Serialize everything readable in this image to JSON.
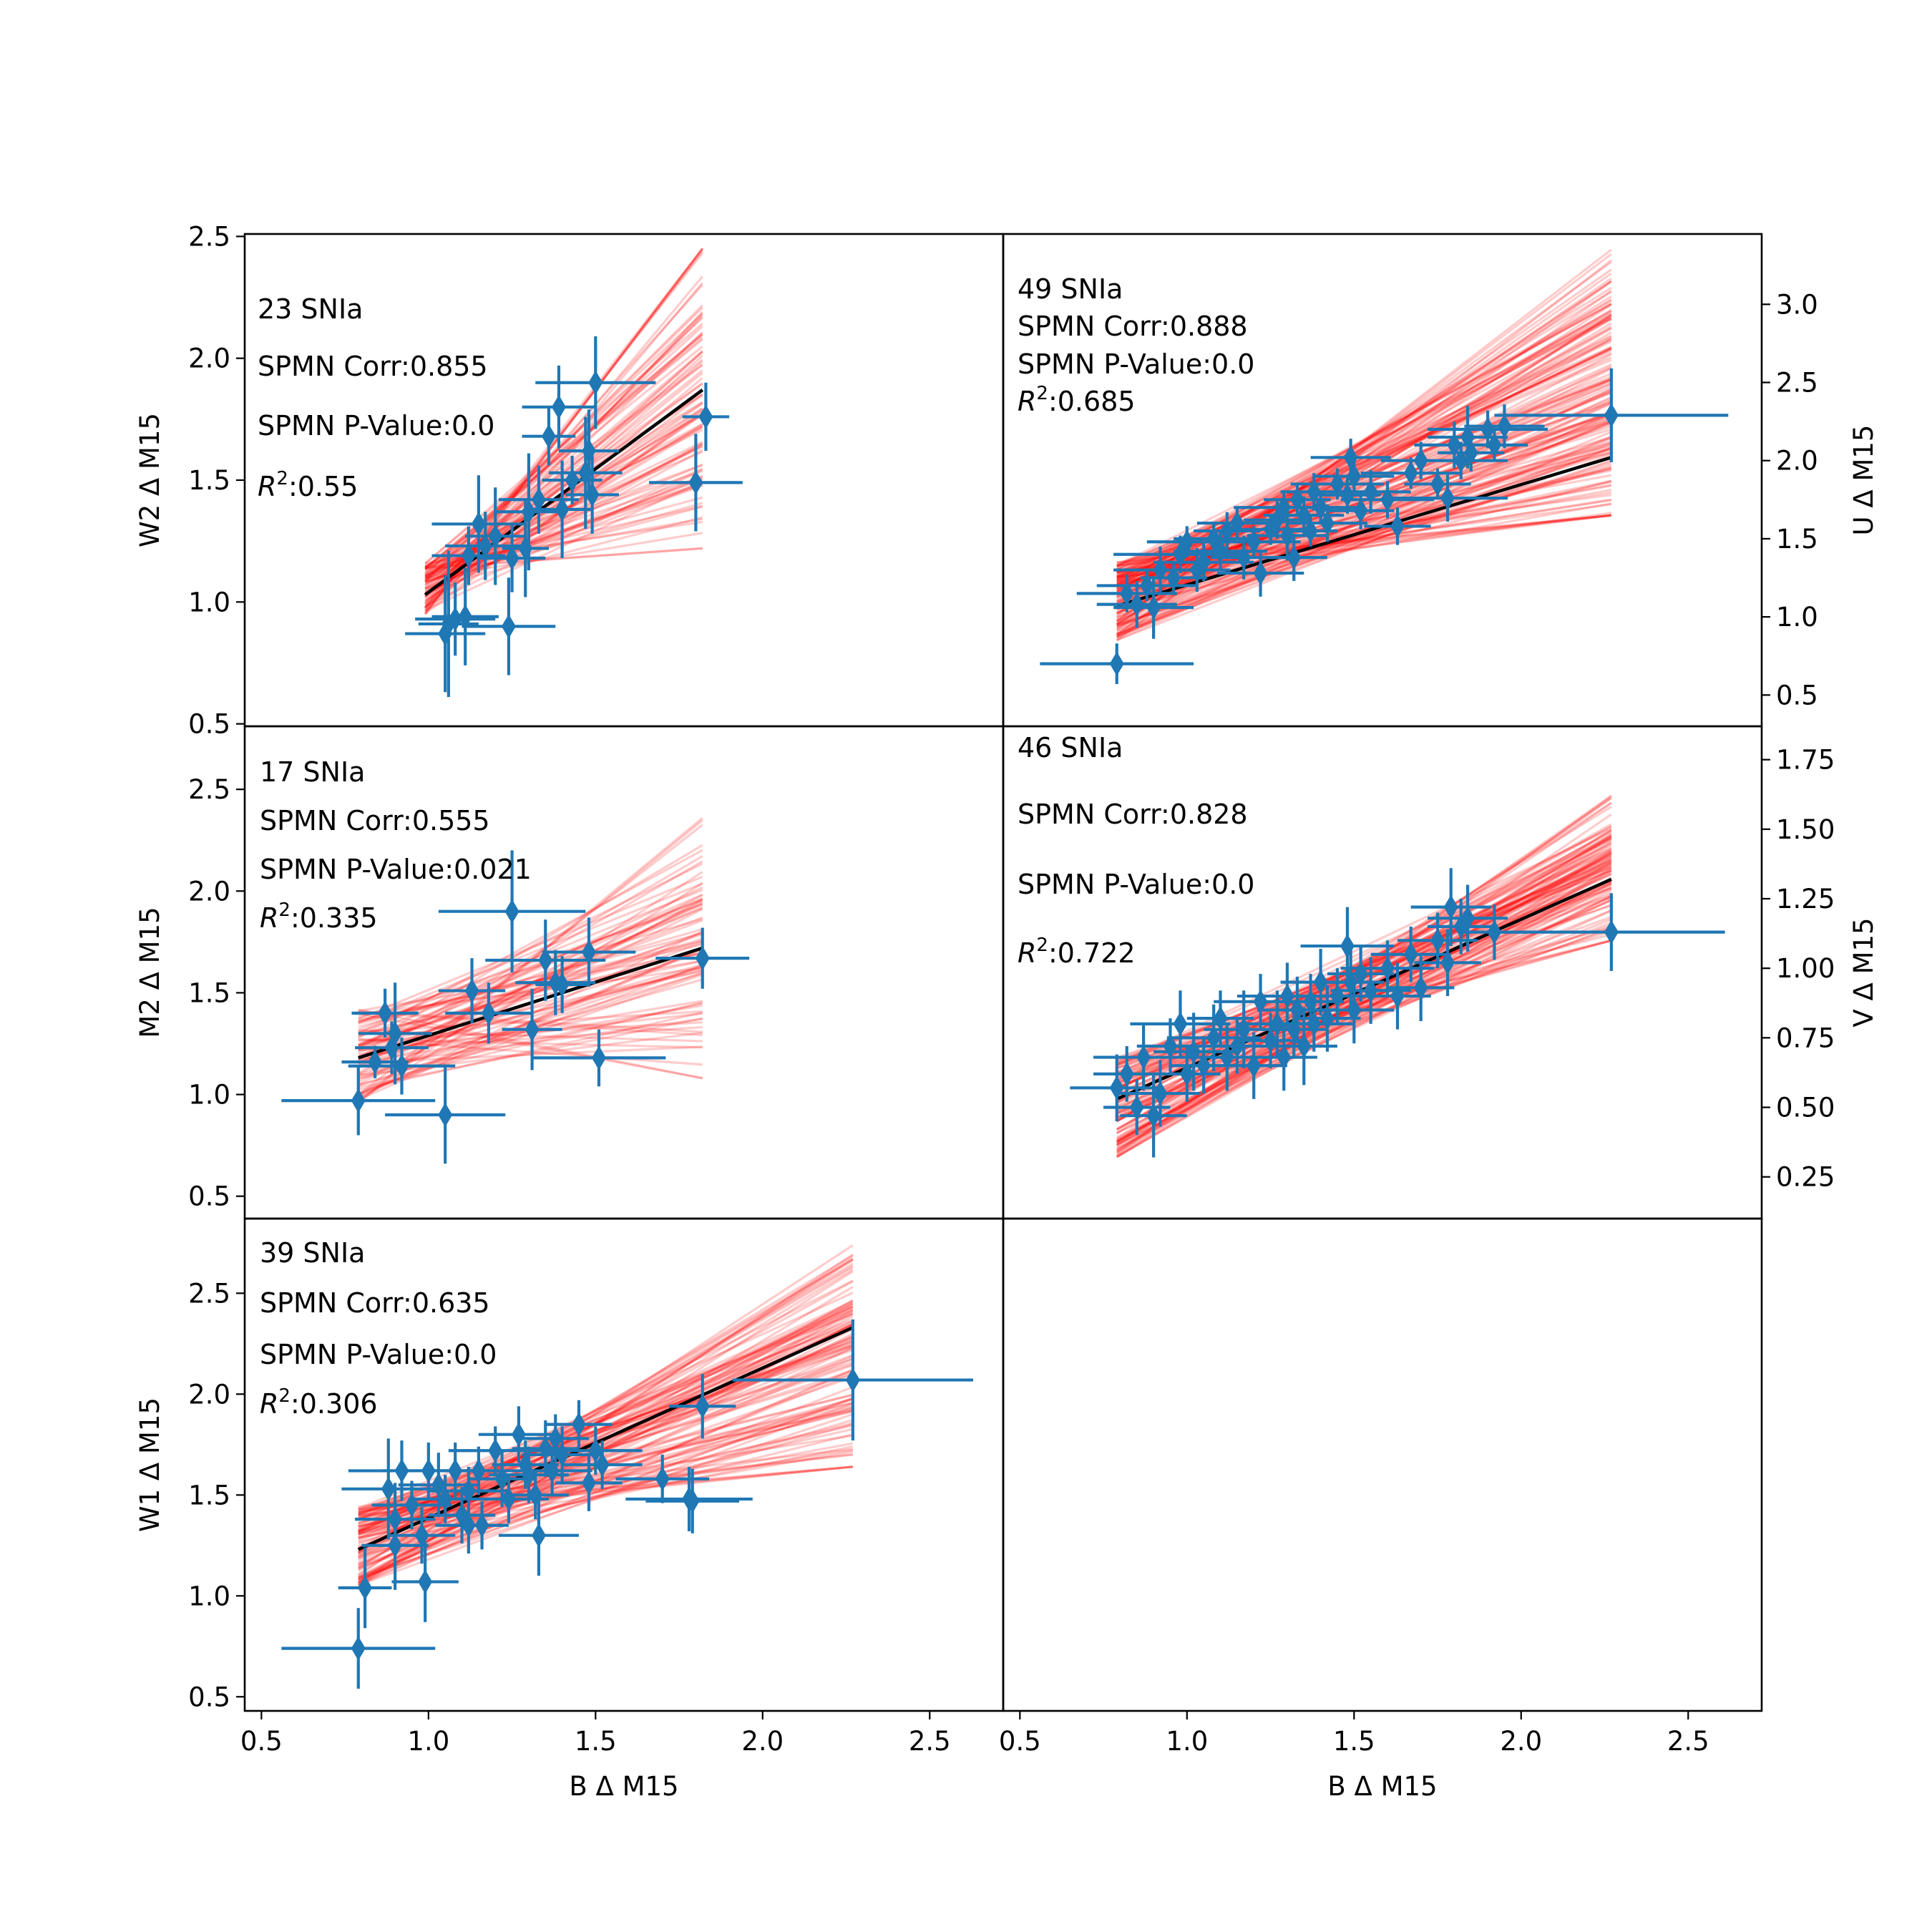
{
  "figure": {
    "colors": {
      "points": "#1f77b4",
      "samples": "#ff0000",
      "fit": "#000000",
      "axes": "#000000"
    }
  },
  "chart_data": [
    {
      "type": "scatter",
      "id": "w2",
      "annotations": [
        "23 SNIa",
        "SPMN Corr:0.855",
        "SPMN P-Value:0.0",
        ":0.55"
      ],
      "r2_label": "R",
      "r2_exp": "2",
      "xlabel": "",
      "ylabel": "W2 Δ M15",
      "ylabel_side": "left",
      "xlim": [
        0.45,
        2.72
      ],
      "ylim": [
        0.49,
        2.51
      ],
      "xticks": [],
      "yticks": [
        "0.5",
        "1.0",
        "1.5",
        "2.0",
        "2.5"
      ],
      "fit": {
        "x": [
          0.99,
          1.82
        ],
        "y": [
          1.03,
          1.87
        ]
      },
      "samples": {
        "x0": 0.99,
        "x1": 1.82,
        "y0_range": [
          0.95,
          1.16
        ],
        "y1_range": [
          1.22,
          2.45
        ],
        "n": 90
      },
      "points": [
        [
          1.05,
          0.87,
          0.12,
          0.24
        ],
        [
          1.06,
          0.91,
          0.09,
          0.3
        ],
        [
          1.08,
          0.93,
          0.12,
          0.15
        ],
        [
          1.11,
          0.94,
          0.1,
          0.2
        ],
        [
          1.24,
          0.9,
          0.14,
          0.2
        ],
        [
          1.12,
          1.19,
          0.11,
          0.12
        ],
        [
          1.15,
          1.32,
          0.14,
          0.2
        ],
        [
          1.17,
          1.23,
          0.12,
          0.14
        ],
        [
          1.2,
          1.27,
          0.09,
          0.2
        ],
        [
          1.25,
          1.18,
          0.1,
          0.14
        ],
        [
          1.29,
          1.22,
          0.07,
          0.2
        ],
        [
          1.3,
          1.37,
          0.1,
          0.24
        ],
        [
          1.33,
          1.42,
          0.12,
          0.14
        ],
        [
          1.36,
          1.68,
          0.08,
          0.12
        ],
        [
          1.39,
          1.8,
          0.11,
          0.17
        ],
        [
          1.4,
          1.38,
          0.09,
          0.2
        ],
        [
          1.43,
          1.5,
          0.09,
          0.1
        ],
        [
          1.47,
          1.53,
          0.11,
          0.23
        ],
        [
          1.48,
          1.62,
          0.09,
          0.17
        ],
        [
          1.49,
          1.44,
          0.08,
          0.16
        ],
        [
          1.5,
          1.9,
          0.18,
          0.19
        ],
        [
          1.8,
          1.49,
          0.14,
          0.2
        ],
        [
          1.83,
          1.76,
          0.07,
          0.14
        ]
      ]
    },
    {
      "type": "scatter",
      "id": "u",
      "annotations": [
        "49 SNIa",
        "SPMN Corr:0.888",
        "SPMN P-Value:0.0",
        ":0.685"
      ],
      "r2_label": "R",
      "r2_exp": "2",
      "xlabel": "",
      "ylabel": "U Δ M15",
      "ylabel_side": "right",
      "xlim": [
        0.45,
        2.72
      ],
      "ylim": [
        0.3,
        3.45
      ],
      "xticks": [],
      "yticks": [
        "0.5",
        "1.0",
        "1.5",
        "2.0",
        "2.5",
        "3.0"
      ],
      "fit": {
        "x": [
          0.79,
          2.27
        ],
        "y": [
          1.07,
          2.02
        ]
      },
      "samples": {
        "x0": 0.79,
        "x1": 2.27,
        "y0_range": [
          0.85,
          1.35
        ],
        "y1_range": [
          1.65,
          3.35
        ],
        "n": 150
      },
      "points": [
        [
          0.79,
          0.7,
          0.23,
          0.13
        ],
        [
          0.82,
          1.15,
          0.15,
          0.12
        ],
        [
          0.85,
          1.08,
          0.12,
          0.15
        ],
        [
          0.88,
          1.2,
          0.15,
          0.1
        ],
        [
          0.9,
          1.06,
          0.12,
          0.2
        ],
        [
          0.92,
          1.3,
          0.14,
          0.15
        ],
        [
          0.96,
          1.25,
          0.1,
          0.1
        ],
        [
          0.98,
          1.4,
          0.2,
          0.12
        ],
        [
          1.0,
          1.48,
          0.12,
          0.1
        ],
        [
          1.03,
          1.3,
          0.1,
          0.14
        ],
        [
          1.05,
          1.35,
          0.15,
          0.12
        ],
        [
          1.08,
          1.5,
          0.12,
          0.1
        ],
        [
          1.1,
          1.42,
          0.14,
          0.12
        ],
        [
          1.12,
          1.55,
          0.1,
          0.12
        ],
        [
          1.15,
          1.6,
          0.12,
          0.1
        ],
        [
          1.17,
          1.38,
          0.1,
          0.14
        ],
        [
          1.2,
          1.48,
          0.14,
          0.1
        ],
        [
          1.22,
          1.28,
          0.13,
          0.15
        ],
        [
          1.25,
          1.56,
          0.12,
          0.1
        ],
        [
          1.27,
          1.62,
          0.1,
          0.12
        ],
        [
          1.29,
          1.7,
          0.15,
          0.1
        ],
        [
          1.3,
          1.52,
          0.12,
          0.16
        ],
        [
          1.32,
          1.38,
          0.1,
          0.15
        ],
        [
          1.33,
          1.75,
          0.1,
          0.1
        ],
        [
          1.35,
          1.65,
          0.12,
          0.12
        ],
        [
          1.37,
          1.55,
          0.08,
          0.1
        ],
        [
          1.38,
          1.8,
          0.1,
          0.12
        ],
        [
          1.4,
          1.7,
          0.12,
          0.1
        ],
        [
          1.42,
          1.6,
          0.12,
          0.12
        ],
        [
          1.45,
          1.85,
          0.14,
          0.1
        ],
        [
          1.48,
          1.78,
          0.1,
          0.12
        ],
        [
          1.49,
          2.02,
          0.12,
          0.12
        ],
        [
          1.5,
          1.9,
          0.12,
          0.1
        ],
        [
          1.52,
          1.68,
          0.1,
          0.12
        ],
        [
          1.55,
          1.8,
          0.12,
          0.14
        ],
        [
          1.6,
          1.75,
          0.14,
          0.12
        ],
        [
          1.63,
          1.58,
          0.1,
          0.12
        ],
        [
          1.67,
          1.92,
          0.15,
          0.1
        ],
        [
          1.7,
          2.0,
          0.12,
          0.12
        ],
        [
          1.75,
          1.85,
          0.1,
          0.1
        ],
        [
          1.78,
          1.76,
          0.18,
          0.15
        ],
        [
          1.8,
          2.1,
          0.12,
          0.15
        ],
        [
          1.82,
          2.0,
          0.14,
          0.12
        ],
        [
          1.84,
          2.15,
          0.12,
          0.2
        ],
        [
          1.85,
          2.05,
          0.1,
          0.12
        ],
        [
          1.9,
          2.2,
          0.18,
          0.12
        ],
        [
          1.92,
          2.1,
          0.1,
          0.1
        ],
        [
          1.95,
          2.22,
          0.12,
          0.14
        ],
        [
          2.27,
          2.29,
          0.35,
          0.3
        ]
      ]
    },
    {
      "type": "scatter",
      "id": "m2",
      "annotations": [
        "17 SNIa",
        "SPMN Corr:0.555",
        "SPMN P-Value:0.021",
        ":0.335"
      ],
      "r2_label": "R",
      "r2_exp": "2",
      "xlabel": "",
      "ylabel": "M2 Δ M15",
      "ylabel_side": "left",
      "xlim": [
        0.45,
        2.72
      ],
      "ylim": [
        0.39,
        2.81
      ],
      "xticks": [],
      "yticks": [
        "0.5",
        "1.0",
        "1.5",
        "2.0",
        "2.5"
      ],
      "fit": {
        "x": [
          0.79,
          1.82
        ],
        "y": [
          1.18,
          1.72
        ]
      },
      "samples": {
        "x0": 0.79,
        "x1": 1.82,
        "y0_range": [
          0.95,
          1.42
        ],
        "y1_range": [
          1.08,
          2.42
        ],
        "n": 80
      },
      "points": [
        [
          0.79,
          0.97,
          0.23,
          0.17
        ],
        [
          0.84,
          1.16,
          0.1,
          0.08
        ],
        [
          0.87,
          1.4,
          0.1,
          0.12
        ],
        [
          0.89,
          1.23,
          0.11,
          0.13
        ],
        [
          0.9,
          1.3,
          0.11,
          0.25
        ],
        [
          0.92,
          1.14,
          0.16,
          0.14
        ],
        [
          1.05,
          0.9,
          0.18,
          0.24
        ],
        [
          1.13,
          1.51,
          0.1,
          0.16
        ],
        [
          1.18,
          1.4,
          0.13,
          0.15
        ],
        [
          1.25,
          1.9,
          0.22,
          0.3
        ],
        [
          1.31,
          1.32,
          0.09,
          0.2
        ],
        [
          1.35,
          1.66,
          0.18,
          0.2
        ],
        [
          1.38,
          1.55,
          0.12,
          0.16
        ],
        [
          1.4,
          1.54,
          0.08,
          0.14
        ],
        [
          1.48,
          1.7,
          0.14,
          0.17
        ],
        [
          1.51,
          1.18,
          0.2,
          0.14
        ],
        [
          1.82,
          1.67,
          0.14,
          0.15
        ]
      ]
    },
    {
      "type": "scatter",
      "id": "v",
      "annotations": [
        "46 SNIa",
        "SPMN Corr:0.828",
        "SPMN P-Value:0.0",
        ":0.722"
      ],
      "r2_label": "R",
      "r2_exp": "2",
      "xlabel": "",
      "ylabel": "V Δ M15",
      "ylabel_side": "right",
      "xlim": [
        0.45,
        2.72
      ],
      "ylim": [
        0.1,
        1.87
      ],
      "xticks": [],
      "yticks": [
        "0.25",
        "0.50",
        "0.75",
        "1.00",
        "1.25",
        "1.50",
        "1.75"
      ],
      "fit": {
        "x": [
          0.79,
          2.27
        ],
        "y": [
          0.53,
          1.32
        ]
      },
      "samples": {
        "x0": 0.79,
        "x1": 2.27,
        "y0_range": [
          0.32,
          0.68
        ],
        "y1_range": [
          1.1,
          1.62
        ],
        "n": 110
      },
      "points": [
        [
          0.79,
          0.57,
          0.14,
          0.12
        ],
        [
          0.82,
          0.62,
          0.1,
          0.1
        ],
        [
          0.85,
          0.5,
          0.1,
          0.1
        ],
        [
          0.87,
          0.68,
          0.15,
          0.12
        ],
        [
          0.9,
          0.47,
          0.1,
          0.15
        ],
        [
          0.92,
          0.55,
          0.12,
          0.12
        ],
        [
          0.95,
          0.72,
          0.1,
          0.1
        ],
        [
          0.98,
          0.8,
          0.15,
          0.12
        ],
        [
          1.0,
          0.62,
          0.1,
          0.1
        ],
        [
          1.02,
          0.7,
          0.12,
          0.14
        ],
        [
          1.05,
          0.65,
          0.1,
          0.1
        ],
        [
          1.08,
          0.75,
          0.14,
          0.12
        ],
        [
          1.1,
          0.82,
          0.1,
          0.1
        ],
        [
          1.12,
          0.68,
          0.12,
          0.12
        ],
        [
          1.15,
          0.72,
          0.1,
          0.1
        ],
        [
          1.17,
          0.78,
          0.12,
          0.14
        ],
        [
          1.2,
          0.65,
          0.1,
          0.12
        ],
        [
          1.22,
          0.88,
          0.14,
          0.1
        ],
        [
          1.25,
          0.74,
          0.1,
          0.1
        ],
        [
          1.27,
          0.8,
          0.12,
          0.12
        ],
        [
          1.29,
          0.68,
          0.1,
          0.12
        ],
        [
          1.3,
          0.9,
          0.15,
          0.12
        ],
        [
          1.32,
          0.78,
          0.1,
          0.1
        ],
        [
          1.33,
          0.85,
          0.12,
          0.12
        ],
        [
          1.35,
          0.72,
          0.1,
          0.14
        ],
        [
          1.37,
          0.88,
          0.1,
          0.1
        ],
        [
          1.38,
          0.8,
          0.12,
          0.1
        ],
        [
          1.4,
          0.95,
          0.12,
          0.12
        ],
        [
          1.42,
          0.82,
          0.1,
          0.12
        ],
        [
          1.45,
          0.9,
          0.12,
          0.1
        ],
        [
          1.48,
          1.08,
          0.14,
          0.14
        ],
        [
          1.49,
          0.95,
          0.1,
          0.12
        ],
        [
          1.5,
          0.85,
          0.12,
          0.12
        ],
        [
          1.52,
          0.98,
          0.1,
          0.1
        ],
        [
          1.55,
          0.92,
          0.12,
          0.12
        ],
        [
          1.6,
          1.0,
          0.14,
          0.1
        ],
        [
          1.63,
          0.9,
          0.1,
          0.12
        ],
        [
          1.67,
          1.05,
          0.12,
          0.1
        ],
        [
          1.7,
          0.93,
          0.1,
          0.12
        ],
        [
          1.75,
          1.1,
          0.12,
          0.1
        ],
        [
          1.78,
          1.02,
          0.1,
          0.12
        ],
        [
          1.79,
          1.22,
          0.12,
          0.14
        ],
        [
          1.82,
          1.15,
          0.1,
          0.1
        ],
        [
          1.84,
          1.18,
          0.12,
          0.12
        ],
        [
          1.92,
          1.13,
          0.1,
          0.1
        ],
        [
          2.27,
          1.13,
          0.34,
          0.14
        ]
      ]
    },
    {
      "type": "scatter",
      "id": "w1",
      "annotations": [
        "39 SNIa",
        "SPMN Corr:0.635",
        "SPMN P-Value:0.0",
        ":0.306"
      ],
      "r2_label": "R",
      "r2_exp": "2",
      "xlabel": "B Δ M15",
      "ylabel": "W1 Δ M15",
      "ylabel_side": "left",
      "xlim": [
        0.45,
        2.72
      ],
      "ylim": [
        0.43,
        2.87
      ],
      "xticks": [
        "0.5",
        "1.0",
        "1.5",
        "2.0",
        "2.5"
      ],
      "yticks": [
        "0.5",
        "1.0",
        "1.5",
        "2.0",
        "2.5"
      ],
      "fit": {
        "x": [
          0.79,
          2.27
        ],
        "y": [
          1.23,
          2.33
        ]
      },
      "samples": {
        "x0": 0.79,
        "x1": 2.27,
        "y0_range": [
          1.05,
          1.45
        ],
        "y1_range": [
          1.64,
          2.75
        ],
        "n": 110
      },
      "points": [
        [
          0.79,
          0.74,
          0.23,
          0.2
        ],
        [
          0.81,
          1.04,
          0.08,
          0.2
        ],
        [
          0.88,
          1.53,
          0.14,
          0.25
        ],
        [
          0.9,
          1.38,
          0.12,
          0.18
        ],
        [
          0.9,
          1.25,
          0.1,
          0.22
        ],
        [
          0.92,
          1.62,
          0.16,
          0.15
        ],
        [
          0.95,
          1.45,
          0.12,
          0.12
        ],
        [
          0.98,
          1.3,
          0.1,
          0.14
        ],
        [
          0.99,
          1.07,
          0.1,
          0.2
        ],
        [
          1.0,
          1.62,
          0.14,
          0.14
        ],
        [
          1.03,
          1.55,
          0.12,
          0.16
        ],
        [
          1.05,
          1.48,
          0.1,
          0.12
        ],
        [
          1.08,
          1.62,
          0.12,
          0.14
        ],
        [
          1.1,
          1.4,
          0.1,
          0.14
        ],
        [
          1.12,
          1.52,
          0.12,
          0.12
        ],
        [
          1.12,
          1.35,
          0.1,
          0.14
        ],
        [
          1.15,
          1.62,
          0.1,
          0.12
        ],
        [
          1.16,
          1.35,
          0.08,
          0.12
        ],
        [
          1.2,
          1.72,
          0.14,
          0.12
        ],
        [
          1.22,
          1.58,
          0.1,
          0.14
        ],
        [
          1.24,
          1.48,
          0.12,
          0.12
        ],
        [
          1.27,
          1.8,
          0.12,
          0.14
        ],
        [
          1.29,
          1.65,
          0.1,
          0.12
        ],
        [
          1.3,
          1.6,
          0.12,
          0.14
        ],
        [
          1.32,
          1.5,
          0.1,
          0.12
        ],
        [
          1.33,
          1.3,
          0.12,
          0.2
        ],
        [
          1.35,
          1.73,
          0.1,
          0.14
        ],
        [
          1.37,
          1.62,
          0.12,
          0.12
        ],
        [
          1.38,
          1.78,
          0.1,
          0.12
        ],
        [
          1.4,
          1.7,
          0.12,
          0.14
        ],
        [
          1.45,
          1.85,
          0.1,
          0.12
        ],
        [
          1.48,
          1.56,
          0.1,
          0.14
        ],
        [
          1.5,
          1.72,
          0.14,
          0.12
        ],
        [
          1.52,
          1.65,
          0.12,
          0.12
        ],
        [
          1.7,
          1.58,
          0.14,
          0.12
        ],
        [
          1.78,
          1.48,
          0.19,
          0.16
        ],
        [
          1.79,
          1.47,
          0.14,
          0.16
        ],
        [
          1.82,
          1.94,
          0.1,
          0.16
        ],
        [
          2.27,
          2.07,
          0.36,
          0.3
        ]
      ]
    },
    {
      "type": "empty",
      "id": "empty",
      "annotations": [],
      "xlabel": "B Δ M15",
      "ylabel": "",
      "xlim": [
        0.45,
        2.72
      ],
      "ylim": [
        0,
        1
      ],
      "xticks": [
        "0.5",
        "1.0",
        "1.5",
        "2.0",
        "2.5"
      ],
      "yticks": []
    }
  ]
}
